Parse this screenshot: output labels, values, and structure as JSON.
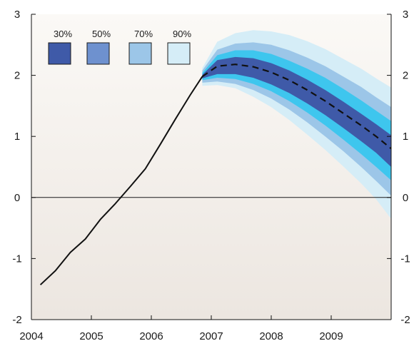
{
  "chart_data": {
    "type": "area",
    "title": "",
    "xlabel": "",
    "ylabel": "",
    "xlim": [
      2004.0,
      2010.0
    ],
    "ylim": [
      -2,
      3
    ],
    "x_ticks": [
      "2004",
      "2005",
      "2006",
      "2007",
      "2008",
      "2009"
    ],
    "y_ticks": [
      "-2",
      "-1",
      "0",
      "1",
      "2",
      "3"
    ],
    "grid": false,
    "zero_line": true,
    "legend": {
      "position": "top-left",
      "items": [
        {
          "label": "30%",
          "color": "#3f5aa8"
        },
        {
          "label": "50%",
          "color": "#6e91cf"
        },
        {
          "label": "70%",
          "color": "#9cc6e8"
        },
        {
          "label": "90%",
          "color": "#d5edf7"
        }
      ]
    },
    "fan_colors": {
      "inner": "#3f5aa8",
      "band50": "#3ec6ee",
      "band70": "#9cc6e8",
      "band90": "#d5edf7"
    },
    "history": {
      "x": [
        2004.15,
        2004.4,
        2004.65,
        2004.9,
        2005.15,
        2005.4,
        2005.65,
        2005.9,
        2006.15,
        2006.4,
        2006.65,
        2006.85
      ],
      "y": [
        -1.43,
        -1.2,
        -0.9,
        -0.68,
        -0.36,
        -0.1,
        0.18,
        0.47,
        0.87,
        1.28,
        1.68,
        1.98
      ]
    },
    "projection": {
      "x": [
        2006.85,
        2007.1,
        2007.4,
        2007.7,
        2008.0,
        2008.3,
        2008.6,
        2008.9,
        2009.2,
        2009.5,
        2009.75,
        2010.0
      ],
      "median": [
        1.98,
        2.15,
        2.18,
        2.14,
        2.05,
        1.92,
        1.76,
        1.58,
        1.38,
        1.18,
        1.0,
        0.8
      ],
      "band30": {
        "lower": [
          1.95,
          2.02,
          2.02,
          1.96,
          1.85,
          1.71,
          1.54,
          1.35,
          1.14,
          0.92,
          0.73,
          0.5
        ],
        "upper": [
          2.01,
          2.25,
          2.3,
          2.28,
          2.2,
          2.08,
          1.93,
          1.76,
          1.57,
          1.37,
          1.2,
          1.02
        ]
      },
      "band50": {
        "lower": [
          1.92,
          1.96,
          1.94,
          1.86,
          1.74,
          1.58,
          1.39,
          1.18,
          0.95,
          0.71,
          0.5,
          0.28
        ]
      },
      "band70": {
        "lower": [
          1.88,
          1.9,
          1.86,
          1.76,
          1.62,
          1.44,
          1.23,
          1.0,
          0.76,
          0.5,
          0.27,
          0.03
        ],
        "upper": [
          2.08,
          2.42,
          2.52,
          2.54,
          2.5,
          2.41,
          2.29,
          2.15,
          1.98,
          1.81,
          1.64,
          1.48
        ]
      },
      "band90": {
        "lower": [
          1.83,
          1.84,
          1.79,
          1.65,
          1.48,
          1.27,
          1.03,
          0.78,
          0.51,
          0.23,
          -0.03,
          -0.35
        ],
        "upper": [
          2.12,
          2.55,
          2.69,
          2.74,
          2.72,
          2.66,
          2.56,
          2.43,
          2.27,
          2.11,
          1.95,
          1.8
        ]
      },
      "band50_upper": [
        2.04,
        2.33,
        2.41,
        2.41,
        2.35,
        2.24,
        2.11,
        1.96,
        1.78,
        1.59,
        1.42,
        1.25
      ]
    }
  }
}
